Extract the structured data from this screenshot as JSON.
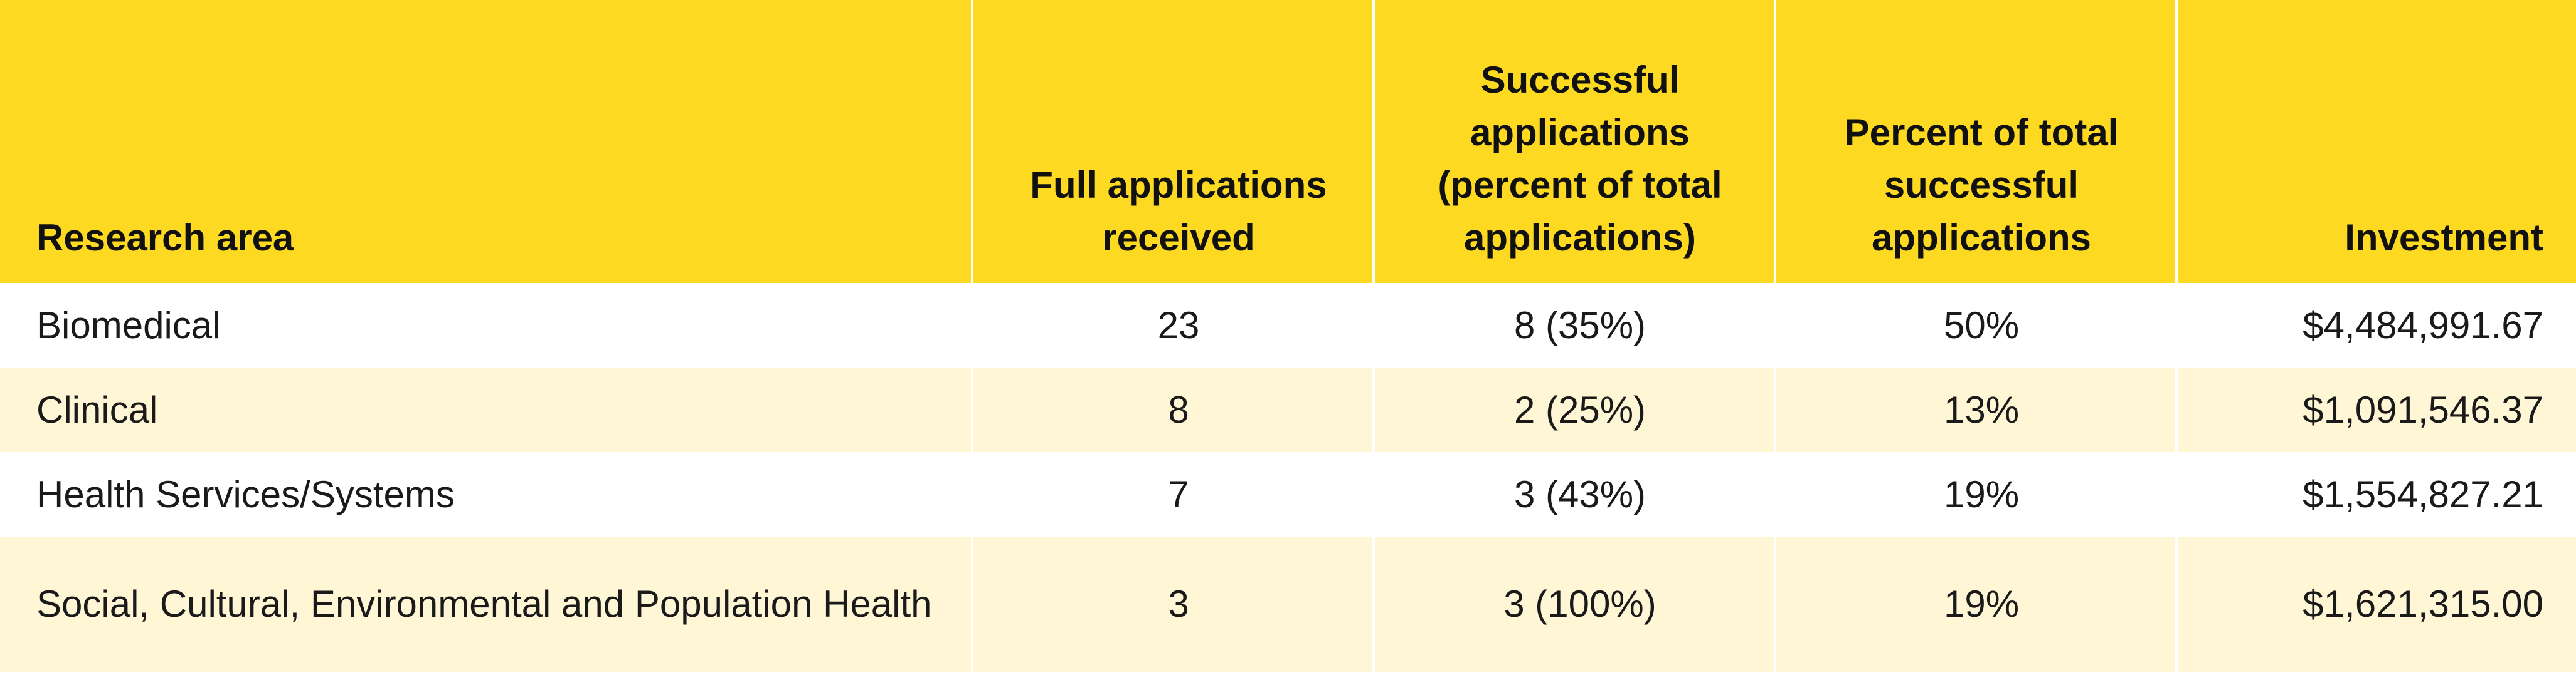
{
  "headers": {
    "research_area": "Research area",
    "full_applications": "Full applications received",
    "successful": "Successful applications (percent of total applications)",
    "percent_total": "Percent of total successful applications",
    "investment": "Investment"
  },
  "rows": [
    {
      "area": "Biomedical",
      "full": "23",
      "successful": "8 (35%)",
      "percent": "50%",
      "investment": "$4,484,991.67"
    },
    {
      "area": "Clinical",
      "full": "8",
      "successful": "2 (25%)",
      "percent": "13%",
      "investment": "$1,091,546.37"
    },
    {
      "area": "Health Services/Systems",
      "full": "7",
      "successful": "3 (43%)",
      "percent": "19%",
      "investment": "$1,554,827.21"
    },
    {
      "area": "Social, Cultural, Environmental and Population Health",
      "full": "3",
      "successful": "3 (100%)",
      "percent": "19%",
      "investment": "$1,621,315.00"
    }
  ],
  "colors": {
    "header_bg": "#fdd922",
    "stripe_bg": "#fff6d6",
    "row_bg": "#ffffff"
  }
}
